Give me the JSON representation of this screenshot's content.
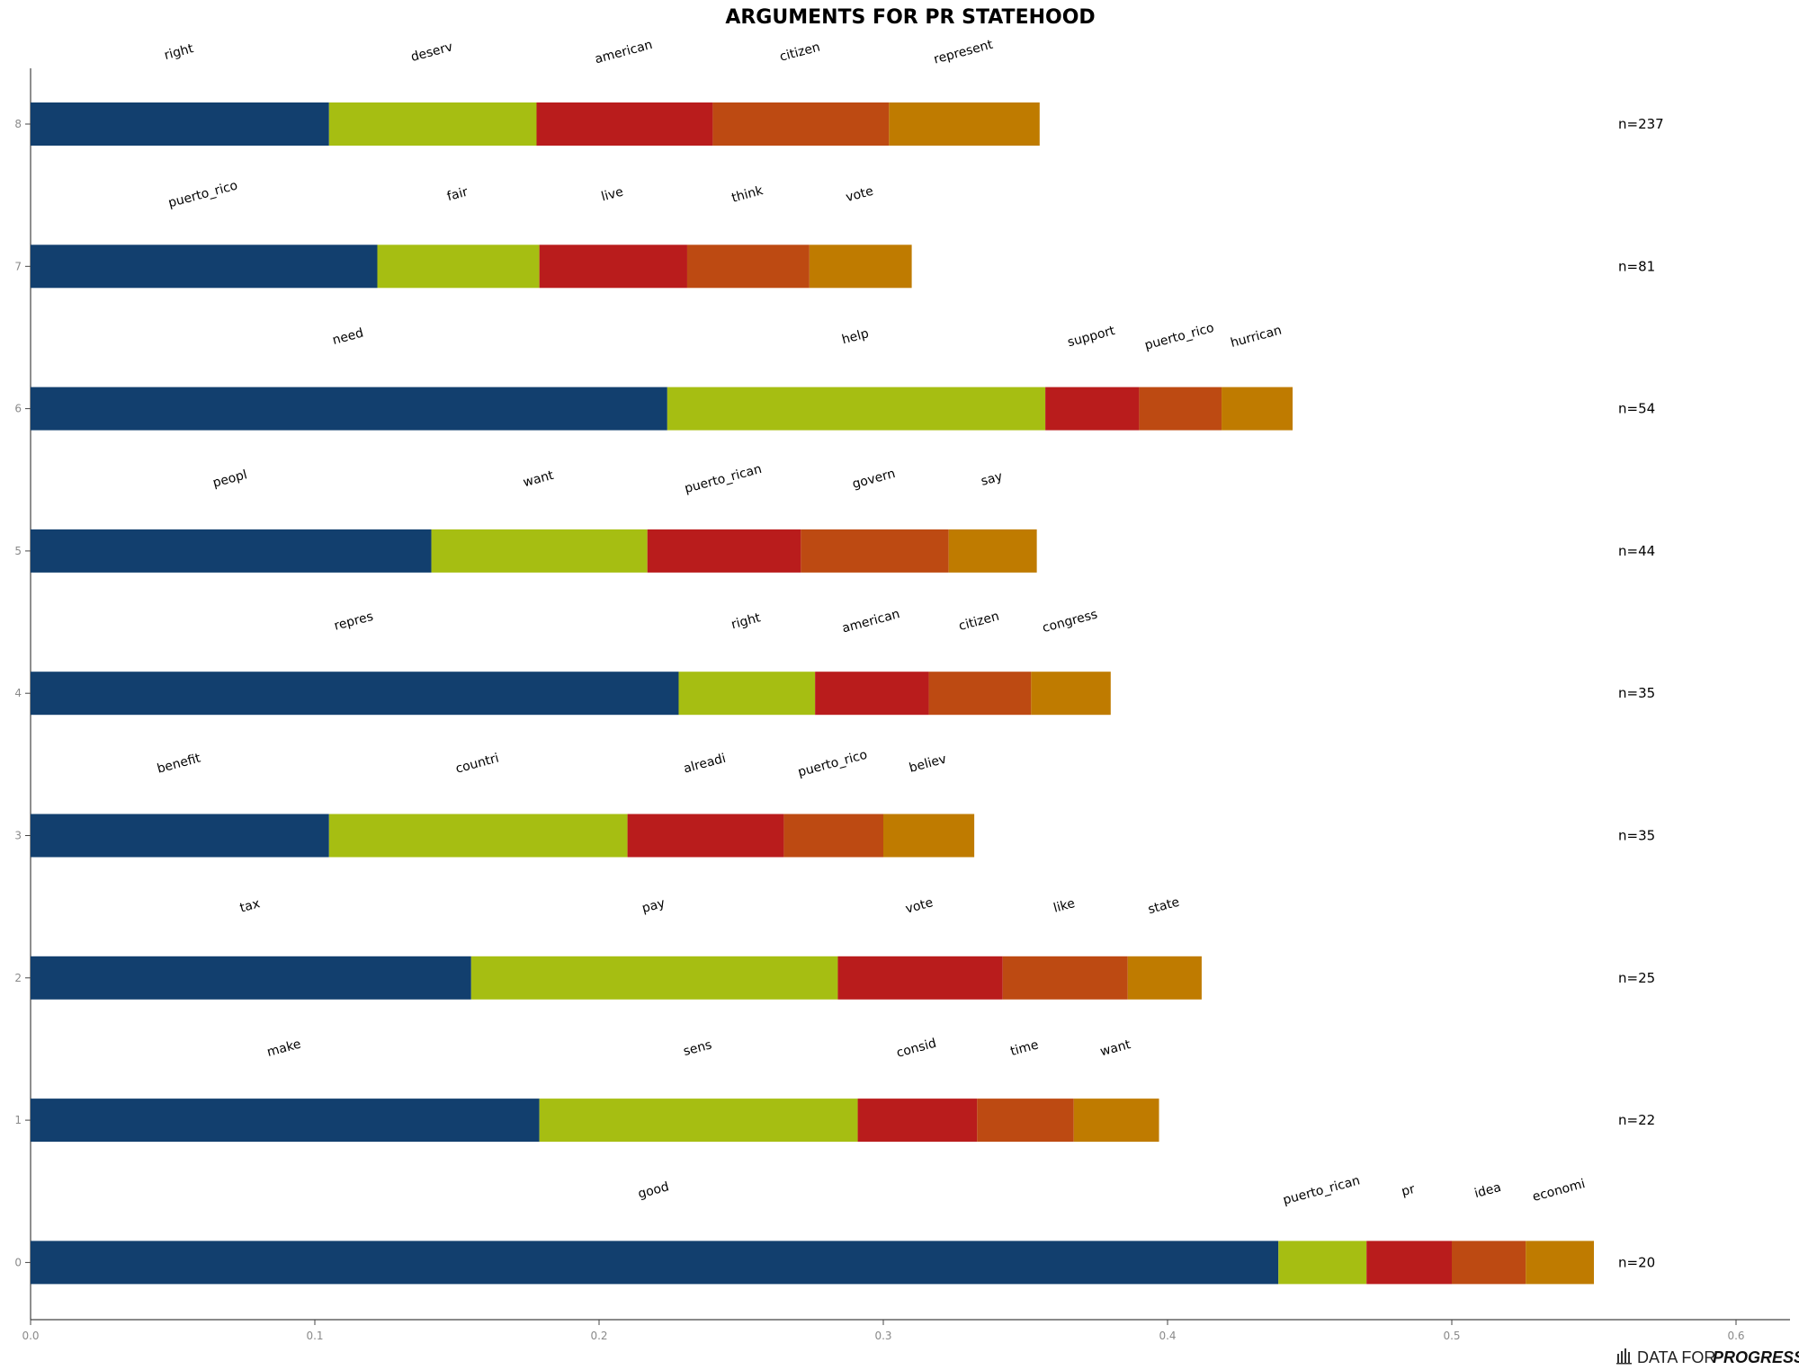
{
  "brand": {
    "prefix": "DATA FOR",
    "name": "PROGRESS",
    "icon": "bar-chart-icon"
  },
  "chart_data": {
    "type": "bar",
    "orientation": "horizontal",
    "stacked": true,
    "title": "ARGUMENTS FOR PR STATEHOOD",
    "xlabel": "",
    "ylabel": "",
    "xlim": [
      0,
      0.62
    ],
    "x_ticks": [
      "0.0",
      "0.1",
      "0.2",
      "0.3",
      "0.4",
      "0.5",
      "0.6"
    ],
    "grid": false,
    "segment_colors": [
      "#123f6e",
      "#a6be12",
      "#b91c1c",
      "#bd4a12",
      "#bf7b00"
    ],
    "rows": [
      {
        "y": "8",
        "n_label": "n=237",
        "words": [
          "right",
          "deserv",
          "american",
          "citizen",
          "represent"
        ],
        "values": [
          0.105,
          0.073,
          0.062,
          0.062,
          0.053
        ]
      },
      {
        "y": "7",
        "n_label": "n=81",
        "words": [
          "puerto_rico",
          "fair",
          "live",
          "think",
          "vote"
        ],
        "values": [
          0.122,
          0.057,
          0.052,
          0.043,
          0.036
        ]
      },
      {
        "y": "6",
        "n_label": "n=54",
        "words": [
          "need",
          "help",
          "support",
          "puerto_rico",
          "hurrican"
        ],
        "values": [
          0.224,
          0.133,
          0.033,
          0.029,
          0.025
        ]
      },
      {
        "y": "5",
        "n_label": "n=44",
        "words": [
          "peopl",
          "want",
          "puerto_rican",
          "govern",
          "say"
        ],
        "values": [
          0.141,
          0.076,
          0.054,
          0.052,
          0.031
        ]
      },
      {
        "y": "4",
        "n_label": "n=35",
        "words": [
          "repres",
          "right",
          "american",
          "citizen",
          "congress"
        ],
        "values": [
          0.228,
          0.048,
          0.04,
          0.036,
          0.028
        ]
      },
      {
        "y": "3",
        "n_label": "n=35",
        "words": [
          "benefit",
          "countri",
          "alreadi",
          "puerto_rico",
          "believ"
        ],
        "values": [
          0.105,
          0.105,
          0.055,
          0.035,
          0.032
        ]
      },
      {
        "y": "2",
        "n_label": "n=25",
        "words": [
          "tax",
          "pay",
          "vote",
          "like",
          "state"
        ],
        "values": [
          0.155,
          0.129,
          0.058,
          0.044,
          0.026
        ]
      },
      {
        "y": "1",
        "n_label": "n=22",
        "words": [
          "make",
          "sens",
          "consid",
          "time",
          "want"
        ],
        "values": [
          0.179,
          0.112,
          0.042,
          0.034,
          0.03
        ]
      },
      {
        "y": "0",
        "n_label": "n=20",
        "words": [
          "good",
          "puerto_rican",
          "pr",
          "idea",
          "economi"
        ],
        "values": [
          0.439,
          0.031,
          0.03,
          0.026,
          0.024
        ]
      }
    ]
  }
}
